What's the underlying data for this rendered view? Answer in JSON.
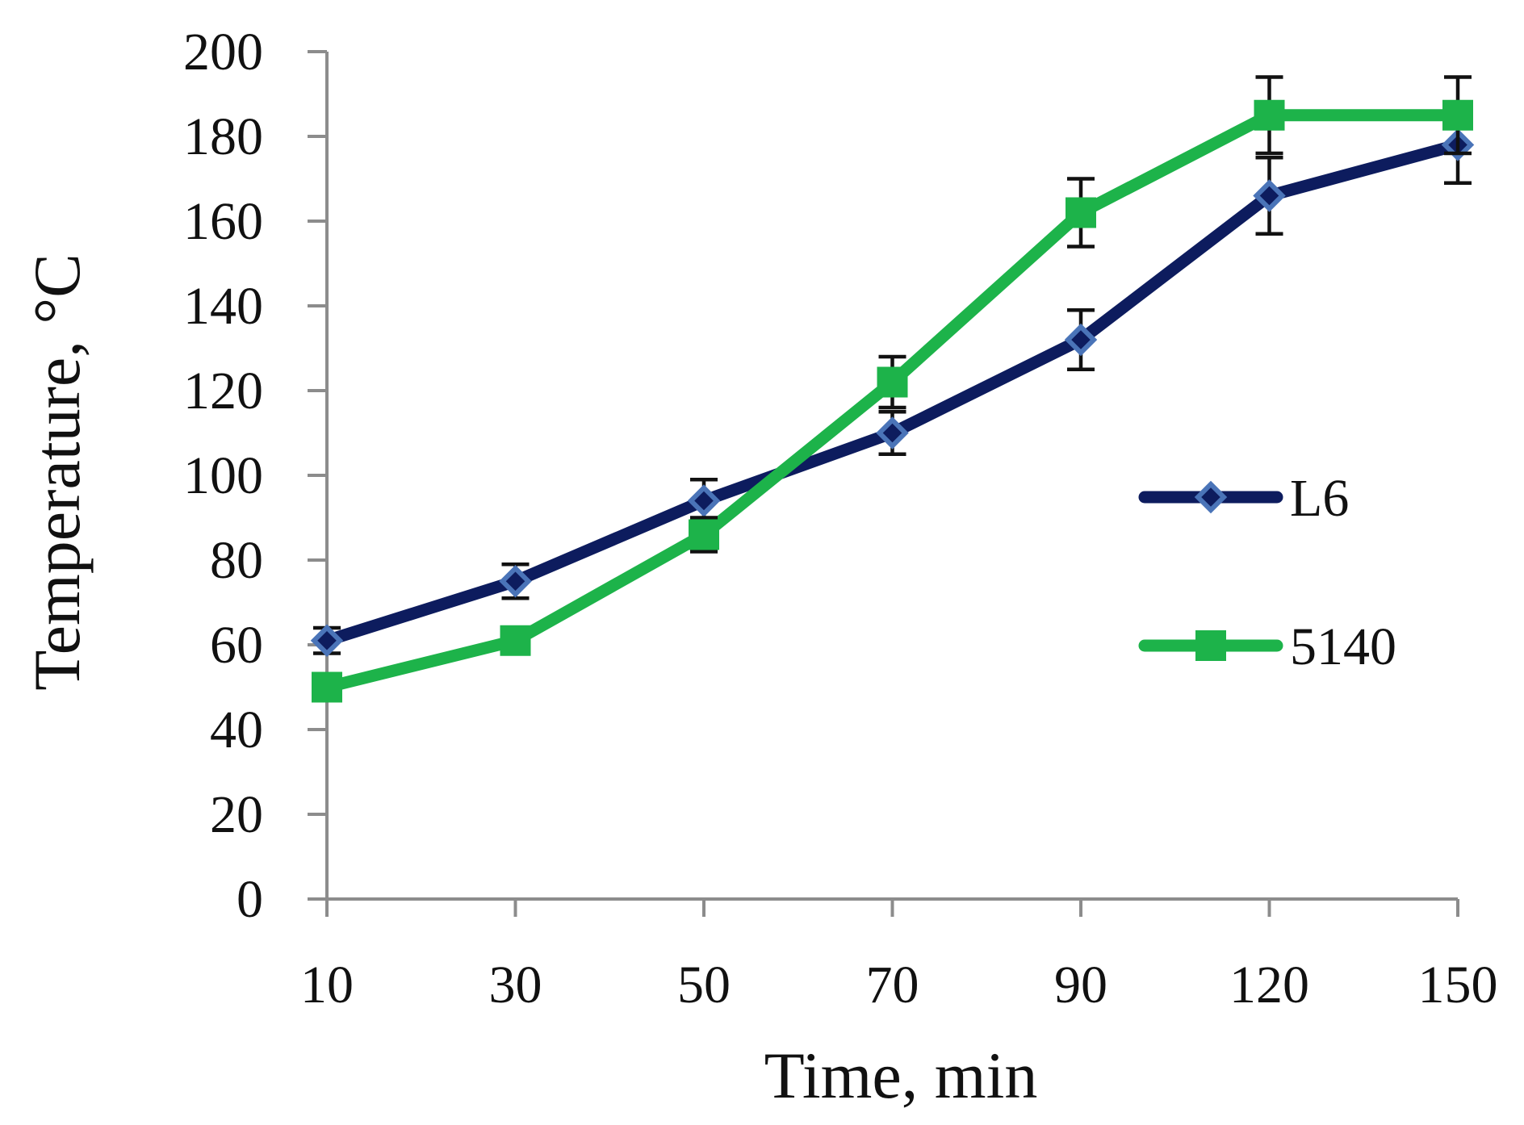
{
  "chart_data": {
    "type": "line",
    "title": "",
    "xlabel": "Time, min",
    "ylabel": "Temperature, °C",
    "categories": [
      "10",
      "30",
      "50",
      "70",
      "90",
      "120",
      "150"
    ],
    "ylim": [
      0,
      200
    ],
    "yticks": [
      0,
      20,
      40,
      60,
      80,
      100,
      120,
      140,
      160,
      180,
      200
    ],
    "grid": false,
    "legend_position": "right",
    "series": [
      {
        "name": "L6",
        "values": [
          61,
          75,
          94,
          110,
          132,
          166,
          178
        ],
        "errors": [
          3,
          4,
          5,
          5,
          7,
          9,
          9
        ],
        "color": "#0d1c5e",
        "marker": "diamond",
        "marker_color": "#4a74b8"
      },
      {
        "name": "5140",
        "values": [
          50,
          61,
          86,
          122,
          162,
          185,
          185
        ],
        "errors": [
          3,
          3,
          4,
          6,
          8,
          9,
          9
        ],
        "color": "#1db34a",
        "marker": "square",
        "marker_color": "#1db34a"
      }
    ]
  }
}
